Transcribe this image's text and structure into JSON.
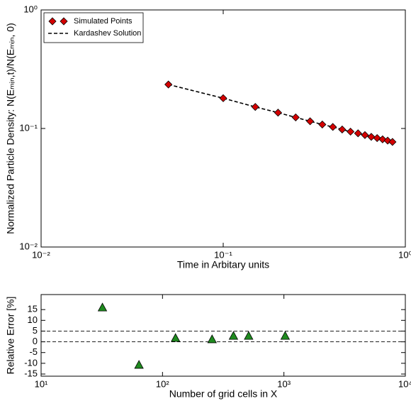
{
  "chart_data": [
    {
      "type": "line",
      "xlabel": "Time in Arbitary units",
      "ylabel": "Normalized Particle Density: N(Eₘᵢₙ,t)/N(Eₘᵢₙ, 0)",
      "xscale": "log",
      "yscale": "log",
      "xlim": [
        0.01,
        1
      ],
      "ylim": [
        0.01,
        1
      ],
      "xticks": [
        {
          "value": 0.01,
          "label": "10⁻²"
        },
        {
          "value": 0.1,
          "label": "10⁻¹"
        },
        {
          "value": 1,
          "label": "10⁰"
        }
      ],
      "yticks": [
        {
          "value": 0.01,
          "label": "10⁻²"
        },
        {
          "value": 0.1,
          "label": "10⁻¹"
        },
        {
          "value": 1,
          "label": "10⁰"
        }
      ],
      "legend": "upper left",
      "x": [
        0.05,
        0.1,
        0.15,
        0.2,
        0.25,
        0.3,
        0.35,
        0.4,
        0.45,
        0.5,
        0.55,
        0.6,
        0.65,
        0.7,
        0.75,
        0.8,
        0.85
      ],
      "series": [
        {
          "name": "Simulated Points",
          "color": "#d40000",
          "marker": "diamond",
          "values": [
            0.235,
            0.18,
            0.152,
            0.136,
            0.124,
            0.115,
            0.108,
            0.103,
            0.098,
            0.094,
            0.091,
            0.088,
            0.085,
            0.083,
            0.081,
            0.079,
            0.077
          ]
        },
        {
          "name": "Kardashev Solution",
          "color": "#000000",
          "linestyle": "dashed",
          "values": [
            0.235,
            0.18,
            0.152,
            0.136,
            0.124,
            0.115,
            0.108,
            0.103,
            0.098,
            0.094,
            0.091,
            0.088,
            0.085,
            0.083,
            0.081,
            0.079,
            0.077
          ]
        }
      ]
    },
    {
      "type": "scatter",
      "xlabel": "Number of grid cells in X",
      "ylabel": "Relative Error [%]",
      "xscale": "log",
      "yscale": "linear",
      "xlim": [
        10,
        10000
      ],
      "ylim": [
        -16,
        22
      ],
      "xticks": [
        {
          "value": 10,
          "label": "10¹"
        },
        {
          "value": 100,
          "label": "10²"
        },
        {
          "value": 1000,
          "label": "10³"
        },
        {
          "value": 10000,
          "label": "10⁴"
        }
      ],
      "yticks": [
        15,
        10,
        5,
        0,
        -5,
        -10,
        -15
      ],
      "hlines": [
        5,
        0
      ],
      "x": [
        32,
        64,
        128,
        256,
        384,
        512,
        1024
      ],
      "series": [
        {
          "color": "#1f8a1f",
          "marker": "triangle",
          "values": [
            16,
            -10.7,
            1.8,
            1.2,
            2.8,
            2.8,
            2.8
          ]
        }
      ]
    }
  ]
}
